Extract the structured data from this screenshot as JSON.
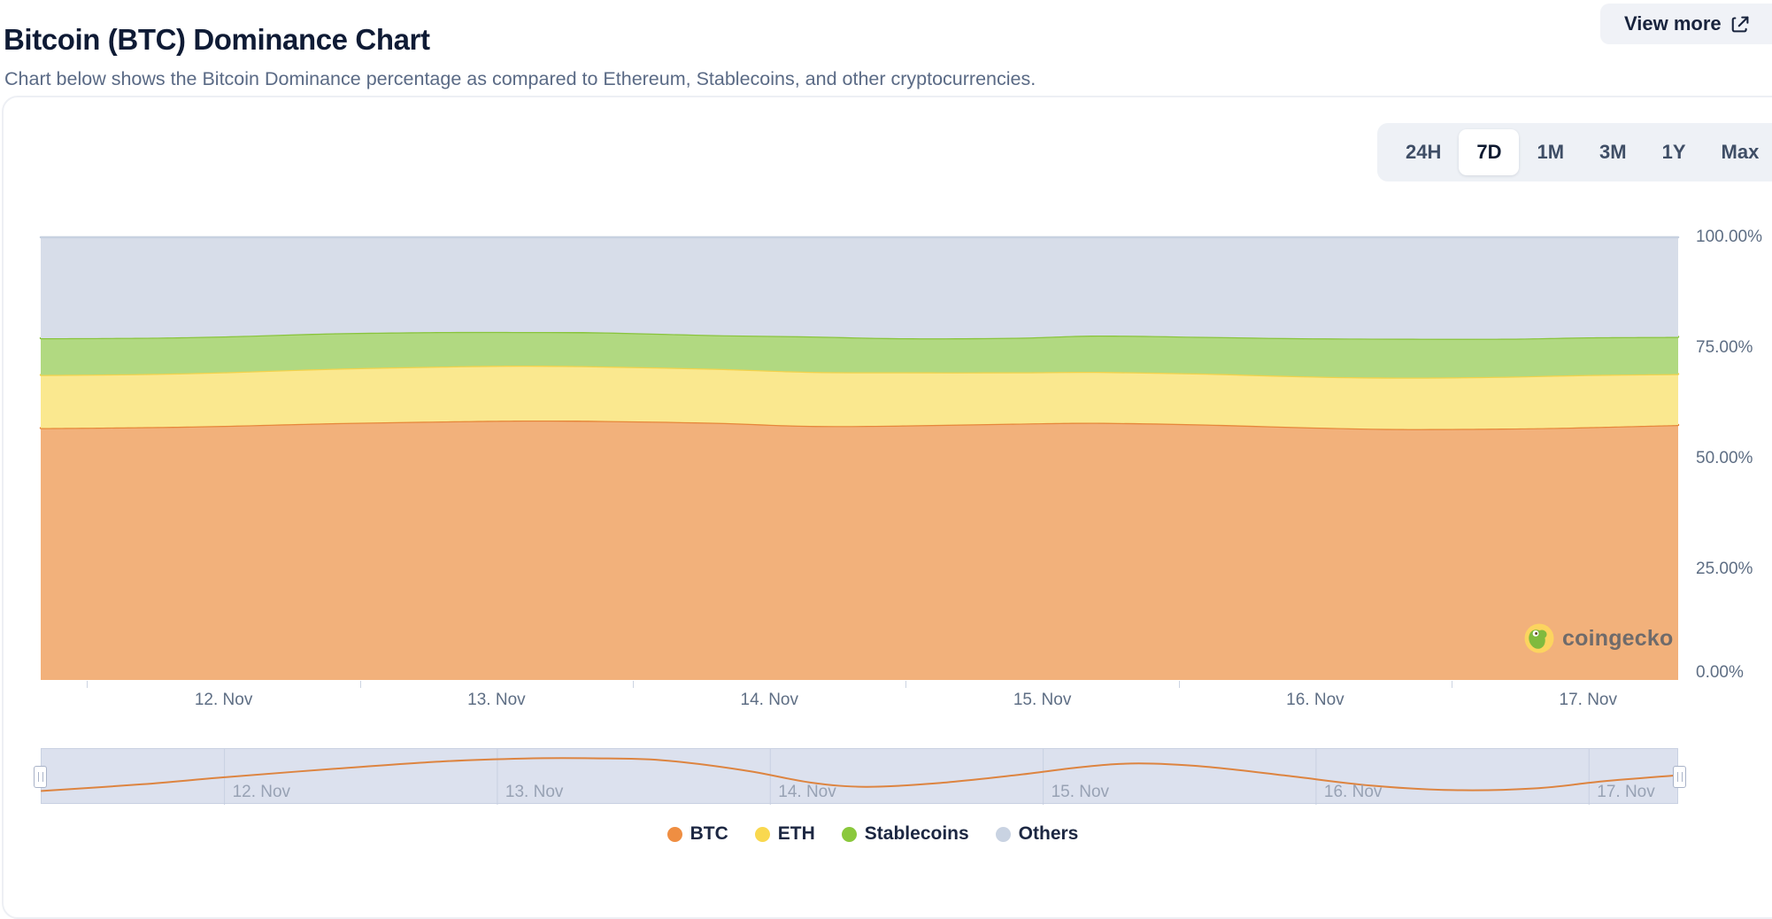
{
  "header": {
    "title": "Bitcoin (BTC) Dominance Chart",
    "subtitle": "Chart below shows the Bitcoin Dominance percentage as compared to Ethereum, Stablecoins, and other cryptocurrencies.",
    "view_more_label": "View more"
  },
  "range_selector": {
    "options": [
      "24H",
      "7D",
      "1M",
      "3M",
      "1Y",
      "Max"
    ],
    "selected": "7D"
  },
  "watermark": {
    "label": "coingecko"
  },
  "chart_data": {
    "type": "area",
    "stacked": true,
    "unit": "%",
    "ylim": [
      0,
      100
    ],
    "grid": false,
    "legend_position": "bottom",
    "x_domain": [
      11.33,
      17.33
    ],
    "x_ticks": [
      {
        "day": 12,
        "label": "12. Nov"
      },
      {
        "day": 13,
        "label": "13. Nov"
      },
      {
        "day": 14,
        "label": "14. Nov"
      },
      {
        "day": 15,
        "label": "15. Nov"
      },
      {
        "day": 16,
        "label": "16. Nov"
      },
      {
        "day": 17,
        "label": "17. Nov"
      }
    ],
    "y_ticks": [
      {
        "value": 100,
        "label": "100.00%"
      },
      {
        "value": 75,
        "label": "75.00%"
      },
      {
        "value": 50,
        "label": "50.00%"
      },
      {
        "value": 25,
        "label": "25.00%"
      },
      {
        "value": 0,
        "label": "0.00%"
      }
    ],
    "days": [
      11.33,
      11.7,
      12.0,
      12.4,
      12.8,
      13.1,
      13.4,
      13.8,
      14.15,
      14.5,
      14.9,
      15.2,
      15.6,
      15.95,
      16.3,
      16.7,
      17.0,
      17.33
    ],
    "series": [
      {
        "name": "BTC",
        "line": "#e6873a",
        "fill": "#f2b17b",
        "values": [
          56.9,
          57.1,
          57.4,
          58.0,
          58.4,
          58.6,
          58.5,
          58.1,
          57.4,
          57.5,
          57.9,
          58.1,
          57.7,
          57.1,
          56.7,
          56.8,
          57.1,
          57.6
        ]
      },
      {
        "name": "ETH",
        "line": "#f2d24b",
        "fill": "#fae88f",
        "values": [
          12.0,
          12.0,
          12.1,
          12.3,
          12.4,
          12.4,
          12.3,
          12.2,
          12.2,
          12.0,
          11.6,
          11.5,
          11.5,
          11.5,
          11.6,
          11.7,
          11.8,
          11.5
        ]
      },
      {
        "name": "Stablecoins",
        "line": "#89c43d",
        "fill": "#b1d981",
        "values": [
          8.3,
          8.2,
          8.1,
          8.0,
          7.8,
          7.6,
          7.7,
          7.6,
          8.0,
          7.7,
          7.8,
          8.2,
          8.3,
          8.6,
          8.8,
          8.6,
          8.5,
          8.4
        ]
      },
      {
        "name": "Others",
        "line": "#c7d1e0",
        "fill": "#d7dde9",
        "values": [
          22.8,
          22.7,
          22.4,
          21.7,
          21.4,
          21.4,
          21.5,
          22.1,
          22.4,
          22.8,
          22.7,
          22.2,
          22.5,
          22.8,
          22.9,
          22.9,
          22.6,
          22.5
        ]
      }
    ],
    "navigator": {
      "line_color": "#dd8440",
      "background": "#dce1ee",
      "days": [
        11.33,
        11.7,
        12.0,
        12.4,
        12.8,
        13.1,
        13.35,
        13.6,
        13.9,
        14.15,
        14.35,
        14.6,
        14.9,
        15.15,
        15.35,
        15.6,
        15.9,
        16.2,
        16.5,
        16.8,
        17.05,
        17.33
      ],
      "frac": [
        0.88,
        0.72,
        0.55,
        0.35,
        0.17,
        0.1,
        0.095,
        0.14,
        0.38,
        0.68,
        0.78,
        0.7,
        0.5,
        0.3,
        0.22,
        0.3,
        0.52,
        0.75,
        0.86,
        0.82,
        0.65,
        0.5
      ]
    }
  },
  "legend": {
    "items": [
      {
        "label": "BTC",
        "color": "#ef8e42"
      },
      {
        "label": "ETH",
        "color": "#f9d84f"
      },
      {
        "label": "Stablecoins",
        "color": "#8ac83c"
      },
      {
        "label": "Others",
        "color": "#c9d3e2"
      }
    ]
  }
}
